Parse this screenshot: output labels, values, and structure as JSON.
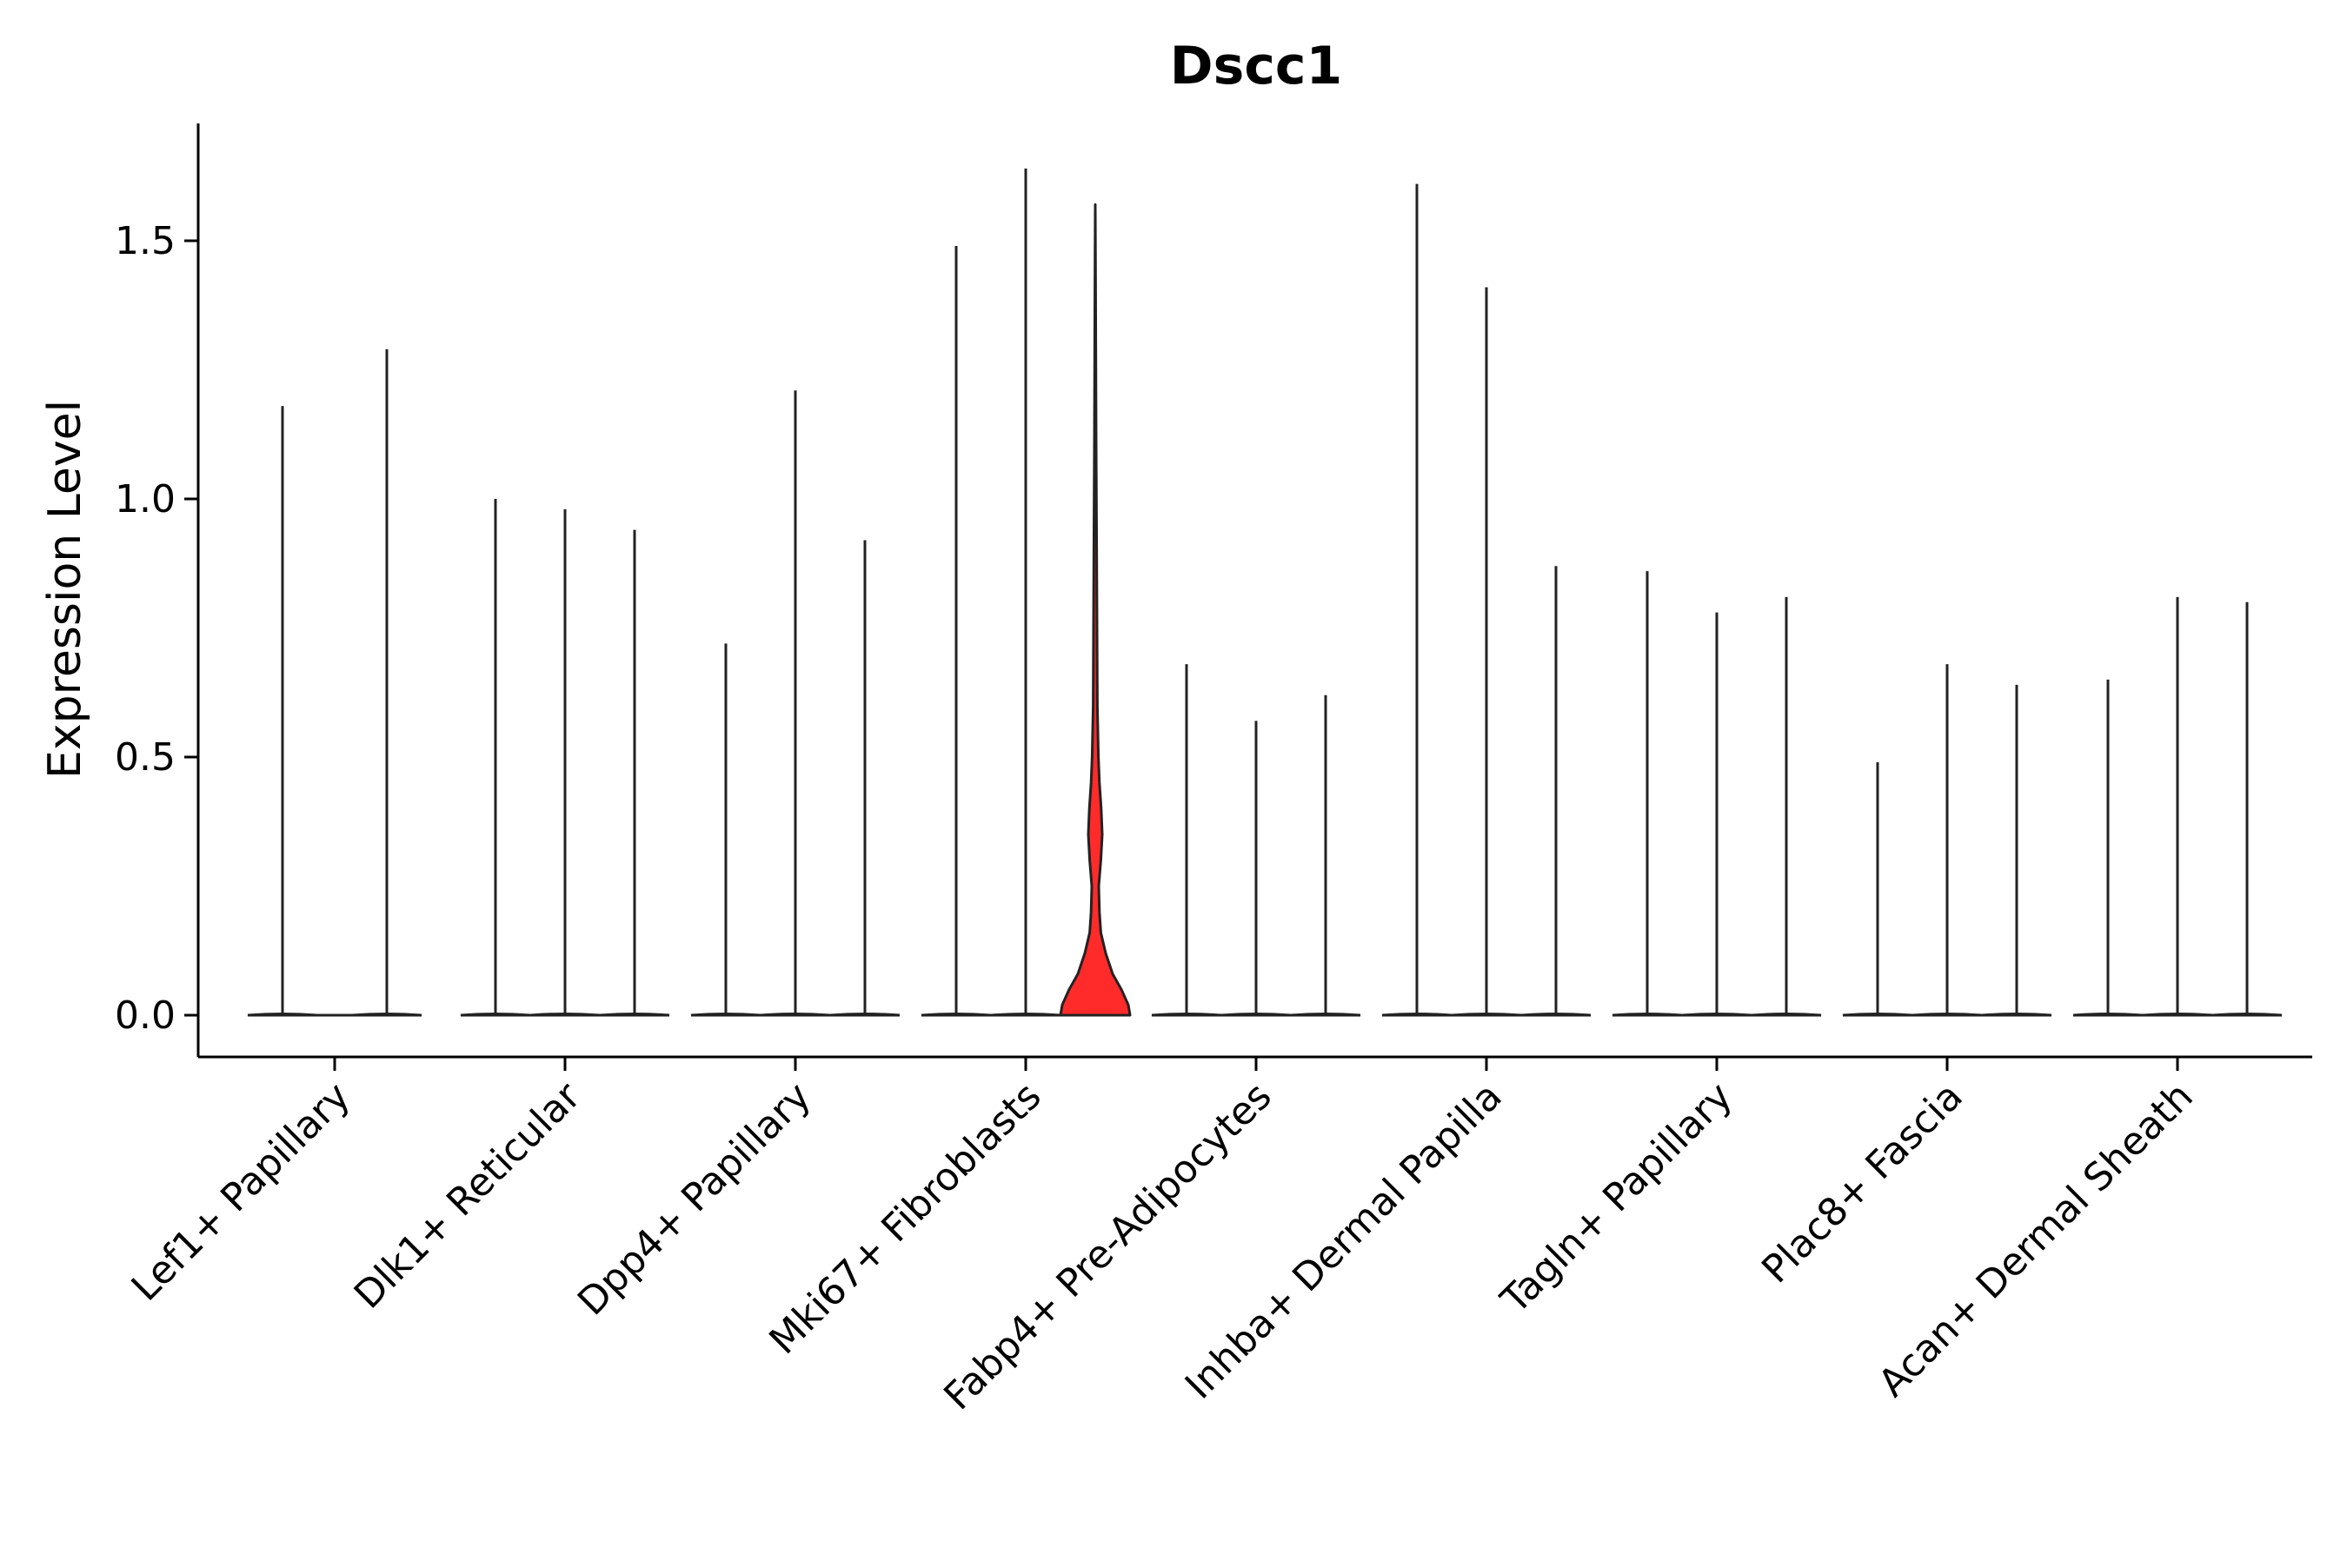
{
  "chart_data": {
    "type": "violin",
    "title": "Dscc1",
    "xlabel": "",
    "ylabel": "Expression Level",
    "ylim": [
      -0.08,
      1.73
    ],
    "yticks": [
      0.0,
      0.5,
      1.0,
      1.5
    ],
    "ytick_labels": [
      "0.0",
      "0.5",
      "1.0",
      "1.5"
    ],
    "grid": false,
    "legend": "none",
    "categories": [
      "Lef1+ Papillary",
      "Dlk1+ Reticular",
      "Dpp4+ Papillary",
      "Mki67+ Fibroblasts",
      "Fabp4+ Pre-Adipocytes",
      "Inhba+ Dermal Papilla",
      "Tagln+ Papillary",
      "Plac8+ Fascia",
      "Acan+ Dermal Sheath"
    ],
    "series": [
      {
        "values": [
          1.18,
          1.0,
          0.72,
          1.49,
          0.68,
          1.61,
          0.86,
          0.49,
          0.65
        ]
      },
      {
        "values": [
          1.29,
          0.98,
          1.21,
          1.64,
          0.57,
          1.41,
          0.78,
          0.68,
          0.81
        ]
      },
      {
        "values": [
          null,
          0.94,
          0.92,
          1.57,
          0.62,
          0.87,
          0.81,
          0.64,
          0.8
        ]
      }
    ],
    "highlight": {
      "category": "Mki67+ Fibroblasts",
      "series_index": 2,
      "color": "#ff2a2a",
      "density": [
        [
          0.0,
          1.0
        ],
        [
          0.02,
          0.95
        ],
        [
          0.05,
          0.75
        ],
        [
          0.08,
          0.5
        ],
        [
          0.12,
          0.3
        ],
        [
          0.16,
          0.16
        ],
        [
          0.2,
          0.12
        ],
        [
          0.25,
          0.1
        ],
        [
          0.3,
          0.16
        ],
        [
          0.35,
          0.2
        ],
        [
          0.4,
          0.17
        ],
        [
          0.45,
          0.12
        ],
        [
          0.5,
          0.09
        ],
        [
          0.6,
          0.06
        ],
        [
          0.75,
          0.05
        ],
        [
          0.9,
          0.04
        ],
        [
          1.1,
          0.025
        ],
        [
          1.3,
          0.015
        ],
        [
          1.45,
          0.008
        ],
        [
          1.57,
          0.0
        ]
      ]
    },
    "colors": {
      "line": "#222222",
      "axis": "#000000",
      "highlight_fill": "#ff2a2a"
    }
  }
}
